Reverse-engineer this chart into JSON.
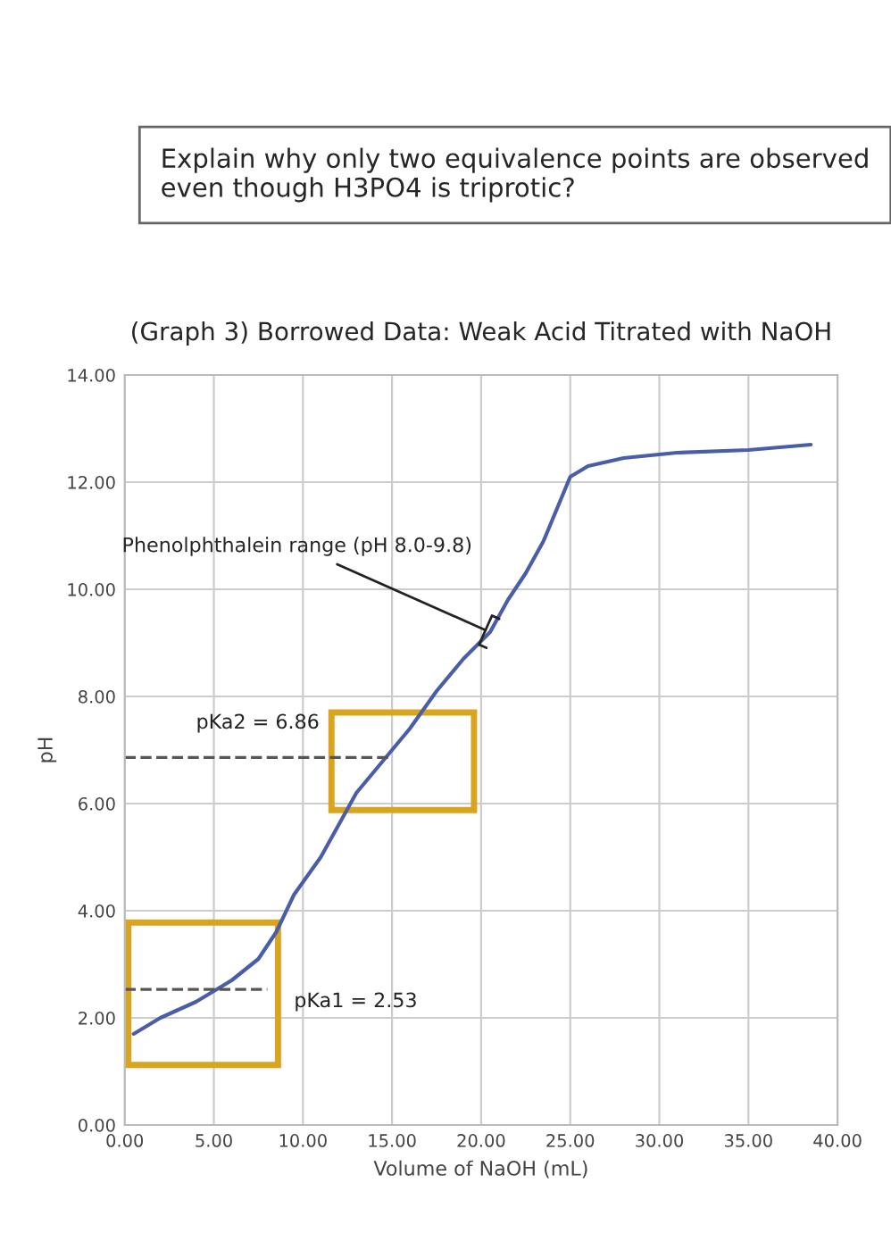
{
  "chart_data": {
    "type": "line",
    "title": "(Graph 3) Borrowed Data: Weak Acid Titrated with NaOH",
    "xlabel": "Volume of NaOH (mL)",
    "ylabel": "pH",
    "x": [
      0.5,
      2,
      4,
      6,
      7.5,
      8.5,
      9.5,
      11,
      12,
      13,
      14.5,
      16,
      17.5,
      19,
      20.5,
      21.5,
      22.5,
      23.5,
      24.5,
      25,
      26,
      28,
      31,
      35,
      38.5
    ],
    "series": [
      {
        "color": "#4a5ea8",
        "values": [
          1.7,
          2.0,
          2.3,
          2.7,
          3.1,
          3.6,
          4.3,
          5.0,
          5.6,
          6.2,
          6.8,
          7.4,
          8.1,
          8.7,
          9.2,
          9.8,
          10.3,
          10.9,
          11.7,
          12.1,
          12.3,
          12.45,
          12.55,
          12.6,
          12.7
        ]
      }
    ],
    "xlim": [
      0,
      40
    ],
    "ylim": [
      0,
      14
    ],
    "xticks": [
      {
        "value": 0,
        "label": "0.00"
      },
      {
        "value": 5,
        "label": "5.00"
      },
      {
        "value": 10,
        "label": "10.00"
      },
      {
        "value": 15,
        "label": "15.00"
      },
      {
        "value": 20,
        "label": "20.00"
      },
      {
        "value": 25,
        "label": "25.00"
      },
      {
        "value": 30,
        "label": "30.00"
      },
      {
        "value": 35,
        "label": "35.00"
      },
      {
        "value": 40,
        "label": "40.00"
      }
    ],
    "yticks": [
      {
        "value": 0,
        "label": "0.00"
      },
      {
        "value": 2,
        "label": "2.00"
      },
      {
        "value": 4,
        "label": "4.00"
      },
      {
        "value": 6,
        "label": "6.00"
      },
      {
        "value": 8,
        "label": "8.00"
      },
      {
        "value": 10,
        "label": "10.00"
      },
      {
        "value": 12,
        "label": "12.00"
      },
      {
        "value": 14,
        "label": "14.00"
      }
    ],
    "ref_lines": [
      {
        "axis": "y",
        "value": 2.53,
        "label": "pKa1 = 2.53",
        "color": "#555555",
        "line_style": "dashed"
      },
      {
        "axis": "y",
        "value": 6.86,
        "label": "pKa2 = 6.86",
        "color": "#555555",
        "line_style": "dashed"
      }
    ],
    "annotations": [
      "Explain why only two equivalence points are observed even though H3PO4 is triprotic?",
      {
        "text": "Phenolphthalein range (pH 8.0-9.8)",
        "x": 20.5,
        "y": 9.2
      }
    ],
    "grid": true,
    "marker": "none",
    "line_style": "solid"
  }
}
